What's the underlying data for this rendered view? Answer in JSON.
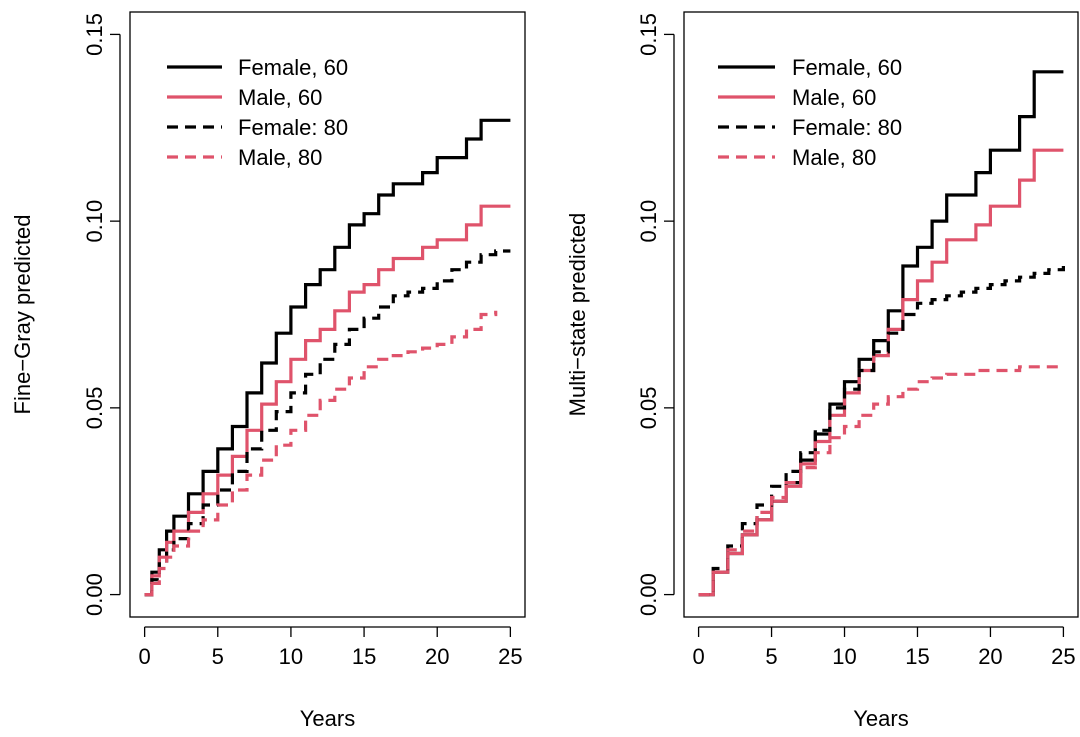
{
  "chart_data": [
    {
      "type": "line",
      "xlabel": "Years",
      "ylabel": "Fine−Gray predicted",
      "xlim": [
        0,
        25
      ],
      "ylim": [
        0,
        0.15
      ],
      "xticks": [
        0,
        5,
        10,
        15,
        20,
        25
      ],
      "xtick_labels": [
        "0",
        "5",
        "10",
        "15",
        "20",
        "25"
      ],
      "yticks": [
        0,
        0.05,
        0.1,
        0.15
      ],
      "ytick_labels": [
        "0.00",
        "0.05",
        "0.10",
        "0.15"
      ],
      "legend_position": "top-left",
      "series": [
        {
          "name": "Female, 60",
          "color": "#000000",
          "dash": "solid",
          "x": [
            0,
            0.5,
            1,
            1.5,
            2,
            3,
            4,
            5,
            6,
            7,
            8,
            9,
            10,
            11,
            12,
            13,
            14,
            15,
            16,
            17,
            18,
            19,
            20,
            21,
            22,
            23,
            24,
            25
          ],
          "y": [
            0,
            0.006,
            0.012,
            0.017,
            0.021,
            0.027,
            0.033,
            0.039,
            0.045,
            0.054,
            0.062,
            0.07,
            0.077,
            0.083,
            0.087,
            0.093,
            0.099,
            0.102,
            0.107,
            0.11,
            0.11,
            0.113,
            0.117,
            0.117,
            0.122,
            0.127,
            0.127,
            0.127
          ]
        },
        {
          "name": "Male, 60",
          "color": "#DF536B",
          "dash": "solid",
          "x": [
            0,
            0.5,
            1,
            1.5,
            2,
            3,
            4,
            5,
            6,
            7,
            8,
            9,
            10,
            11,
            12,
            13,
            14,
            15,
            16,
            17,
            18,
            19,
            20,
            21,
            22,
            23,
            24,
            25
          ],
          "y": [
            0,
            0.005,
            0.01,
            0.014,
            0.017,
            0.022,
            0.027,
            0.032,
            0.037,
            0.044,
            0.051,
            0.057,
            0.063,
            0.068,
            0.071,
            0.076,
            0.081,
            0.083,
            0.087,
            0.09,
            0.09,
            0.093,
            0.095,
            0.095,
            0.099,
            0.104,
            0.104,
            0.104
          ]
        },
        {
          "name": "Female: 80",
          "color": "#000000",
          "dash": "dashed",
          "x": [
            0,
            0.5,
            1,
            1.5,
            2,
            3,
            4,
            5,
            6,
            7,
            8,
            9,
            10,
            11,
            12,
            13,
            14,
            15,
            16,
            17,
            18,
            19,
            20,
            21,
            22,
            23,
            24,
            25
          ],
          "y": [
            0,
            0.004,
            0.009,
            0.012,
            0.015,
            0.019,
            0.024,
            0.028,
            0.033,
            0.039,
            0.044,
            0.049,
            0.054,
            0.059,
            0.063,
            0.067,
            0.071,
            0.074,
            0.077,
            0.08,
            0.081,
            0.082,
            0.084,
            0.087,
            0.089,
            0.091,
            0.092,
            0.092
          ]
        },
        {
          "name": "Male, 80",
          "color": "#DF536B",
          "dash": "dashed",
          "x": [
            0,
            0.5,
            1,
            1.5,
            2,
            3,
            4,
            5,
            6,
            7,
            8,
            9,
            10,
            11,
            12,
            13,
            14,
            15,
            16,
            17,
            18,
            19,
            20,
            21,
            22,
            23,
            24
          ],
          "y": [
            0,
            0.003,
            0.007,
            0.01,
            0.013,
            0.017,
            0.02,
            0.024,
            0.028,
            0.032,
            0.036,
            0.04,
            0.044,
            0.048,
            0.052,
            0.055,
            0.058,
            0.061,
            0.063,
            0.064,
            0.065,
            0.066,
            0.067,
            0.069,
            0.071,
            0.075,
            0.076
          ]
        }
      ]
    },
    {
      "type": "line",
      "xlabel": "Years",
      "ylabel": "Multi−state predicted",
      "xlim": [
        0,
        25
      ],
      "ylim": [
        0,
        0.15
      ],
      "xticks": [
        0,
        5,
        10,
        15,
        20,
        25
      ],
      "xtick_labels": [
        "0",
        "5",
        "10",
        "15",
        "20",
        "25"
      ],
      "yticks": [
        0,
        0.05,
        0.1,
        0.15
      ],
      "ytick_labels": [
        "0.00",
        "0.05",
        "0.10",
        "0.15"
      ],
      "legend_position": "top-left",
      "series": [
        {
          "name": "Female, 60",
          "color": "#000000",
          "dash": "solid",
          "x": [
            0,
            1,
            2,
            3,
            4,
            5,
            6,
            7,
            8,
            9,
            10,
            11,
            12,
            13,
            14,
            15,
            16,
            17,
            18,
            19,
            20,
            21,
            22,
            23,
            24,
            25
          ],
          "y": [
            0,
            0.006,
            0.011,
            0.016,
            0.02,
            0.025,
            0.03,
            0.036,
            0.043,
            0.051,
            0.057,
            0.063,
            0.068,
            0.076,
            0.088,
            0.093,
            0.1,
            0.107,
            0.107,
            0.113,
            0.119,
            0.119,
            0.128,
            0.14,
            0.14,
            0.14
          ]
        },
        {
          "name": "Male, 60",
          "color": "#DF536B",
          "dash": "solid",
          "x": [
            0,
            1,
            2,
            3,
            4,
            5,
            6,
            7,
            8,
            9,
            10,
            11,
            12,
            13,
            14,
            15,
            16,
            17,
            18,
            19,
            20,
            21,
            22,
            23,
            24,
            25
          ],
          "y": [
            0,
            0.006,
            0.011,
            0.016,
            0.02,
            0.025,
            0.029,
            0.035,
            0.041,
            0.048,
            0.054,
            0.06,
            0.064,
            0.071,
            0.079,
            0.084,
            0.089,
            0.095,
            0.095,
            0.099,
            0.104,
            0.104,
            0.111,
            0.119,
            0.119,
            0.119
          ]
        },
        {
          "name": "Female: 80",
          "color": "#000000",
          "dash": "dashed",
          "x": [
            0,
            1,
            2,
            3,
            4,
            5,
            6,
            7,
            8,
            9,
            10,
            11,
            12,
            13,
            14,
            15,
            16,
            17,
            18,
            19,
            20,
            21,
            22,
            23,
            24,
            25
          ],
          "y": [
            0,
            0.007,
            0.013,
            0.019,
            0.024,
            0.029,
            0.033,
            0.038,
            0.044,
            0.05,
            0.055,
            0.06,
            0.065,
            0.07,
            0.075,
            0.078,
            0.079,
            0.08,
            0.081,
            0.082,
            0.083,
            0.084,
            0.085,
            0.086,
            0.087,
            0.088
          ]
        },
        {
          "name": "Male, 80",
          "color": "#DF536B",
          "dash": "dashed",
          "x": [
            0,
            1,
            2,
            3,
            4,
            5,
            6,
            7,
            8,
            9,
            10,
            11,
            12,
            13,
            14,
            15,
            16,
            17,
            18,
            19,
            20,
            21,
            22,
            23,
            24,
            25
          ],
          "y": [
            0,
            0.006,
            0.012,
            0.017,
            0.022,
            0.026,
            0.03,
            0.034,
            0.038,
            0.042,
            0.045,
            0.048,
            0.051,
            0.053,
            0.055,
            0.057,
            0.058,
            0.059,
            0.059,
            0.06,
            0.06,
            0.06,
            0.061,
            0.061,
            0.061,
            0.061
          ]
        }
      ]
    }
  ]
}
